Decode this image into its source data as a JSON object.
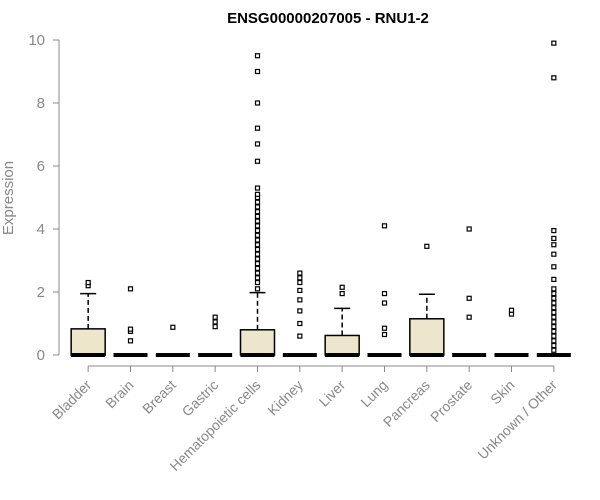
{
  "chart_data": {
    "type": "boxplot",
    "title": "ENSG00000207005 - RNU1-2",
    "ylabel": "Expression",
    "xlabel": "",
    "ylim": [
      0,
      10
    ],
    "yticks": [
      0,
      2,
      4,
      6,
      8,
      10
    ],
    "grid": false,
    "colors": {
      "box_fill": "#ede5cc",
      "box_stroke": "#000000",
      "axis": "#888888",
      "label": "#888888",
      "title": "#000000"
    },
    "categories": [
      "Bladder",
      "Brain",
      "Breast",
      "Gastric",
      "Hematopoietic cells",
      "Kidney",
      "Liver",
      "Lung",
      "Pancreas",
      "Prostate",
      "Skin",
      "Unknown / Other"
    ],
    "boxes": [
      {
        "category": "Bladder",
        "min": 0,
        "q1": 0,
        "median": 0,
        "q3": 0.83,
        "max": 1.95,
        "outliers": [
          2.2,
          2.3
        ]
      },
      {
        "category": "Brain",
        "min": 0,
        "q1": 0,
        "median": 0,
        "q3": 0,
        "max": 0,
        "outliers": [
          0.45,
          0.75,
          0.82,
          2.1
        ]
      },
      {
        "category": "Breast",
        "min": 0,
        "q1": 0,
        "median": 0,
        "q3": 0,
        "max": 0,
        "outliers": [
          0.88
        ]
      },
      {
        "category": "Gastric",
        "min": 0,
        "q1": 0,
        "median": 0,
        "q3": 0,
        "max": 0,
        "outliers": [
          0.9,
          1.05,
          1.2
        ]
      },
      {
        "category": "Hematopoietic cells",
        "min": 0,
        "q1": 0,
        "median": 0,
        "q3": 0.8,
        "max": 1.98,
        "outliers": [
          2.1,
          2.3,
          2.45,
          2.6,
          2.75,
          2.9,
          3.05,
          3.2,
          3.35,
          3.5,
          3.65,
          3.8,
          3.95,
          4.1,
          4.25,
          4.4,
          4.55,
          4.7,
          4.85,
          5.0,
          5.1,
          5.3,
          6.15,
          6.7,
          7.2,
          8.0,
          9.0,
          9.5
        ]
      },
      {
        "category": "Kidney",
        "min": 0,
        "q1": 0,
        "median": 0,
        "q3": 0,
        "max": 0,
        "outliers": [
          0.6,
          1.0,
          1.4,
          1.75,
          2.05,
          2.3,
          2.45,
          2.6
        ]
      },
      {
        "category": "Liver",
        "min": 0,
        "q1": 0,
        "median": 0,
        "q3": 0.62,
        "max": 1.48,
        "outliers": [
          1.95,
          2.15
        ]
      },
      {
        "category": "Lung",
        "min": 0,
        "q1": 0,
        "median": 0,
        "q3": 0,
        "max": 0,
        "outliers": [
          0.65,
          0.85,
          1.65,
          1.95,
          4.1
        ]
      },
      {
        "category": "Pancreas",
        "min": 0,
        "q1": 0,
        "median": 0,
        "q3": 1.15,
        "max": 1.93,
        "outliers": [
          3.45
        ]
      },
      {
        "category": "Prostate",
        "min": 0,
        "q1": 0,
        "median": 0,
        "q3": 0,
        "max": 0,
        "outliers": [
          1.2,
          1.8,
          4.0
        ]
      },
      {
        "category": "Skin",
        "min": 0,
        "q1": 0,
        "median": 0,
        "q3": 0,
        "max": 0,
        "outliers": [
          1.3,
          1.42
        ]
      },
      {
        "category": "Unknown / Other",
        "min": 0,
        "q1": 0,
        "median": 0,
        "q3": 0,
        "max": 0,
        "outliers": [
          0.15,
          0.3,
          0.45,
          0.6,
          0.75,
          0.9,
          1.05,
          1.2,
          1.35,
          1.5,
          1.65,
          1.8,
          1.95,
          2.1,
          2.4,
          2.8,
          3.2,
          3.5,
          3.7,
          3.95,
          8.8,
          9.9
        ]
      }
    ]
  }
}
